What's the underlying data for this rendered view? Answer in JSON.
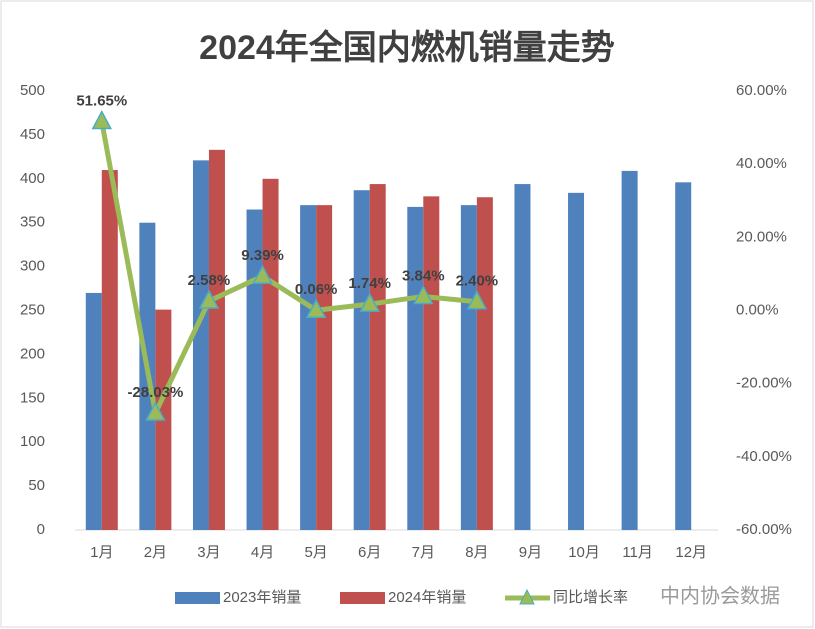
{
  "chart_data": {
    "type": "bar_line",
    "title": "2024年全国内燃机销量走势",
    "categories": [
      "1月",
      "2月",
      "3月",
      "4月",
      "5月",
      "6月",
      "7月",
      "8月",
      "9月",
      "10月",
      "11月",
      "12月"
    ],
    "series": [
      {
        "name": "2023年销量",
        "color": "#4f81bd",
        "type": "bar",
        "values": [
          270,
          350,
          421,
          365,
          370,
          387,
          368,
          370,
          394,
          384,
          409,
          396
        ]
      },
      {
        "name": "2024年销量",
        "color": "#c0504d",
        "type": "bar",
        "values": [
          410,
          251,
          433,
          400,
          370,
          394,
          380,
          379,
          null,
          null,
          null,
          null
        ]
      },
      {
        "name": "同比增长率",
        "color": "#9bbb59",
        "type": "line",
        "axis": "y2",
        "marker_color": "#4bacc6",
        "values": [
          51.65,
          -28.03,
          2.58,
          9.39,
          0.06,
          1.74,
          3.84,
          2.4,
          null,
          null,
          null,
          null
        ],
        "value_labels": [
          "51.65%",
          "-28.03%",
          "2.58%",
          "9.39%",
          "0.06%",
          "1.74%",
          "3.84%",
          "2.40%",
          null,
          null,
          null,
          null
        ]
      }
    ],
    "ylim": [
      0,
      500
    ],
    "yticks": [
      0,
      50,
      100,
      150,
      200,
      250,
      300,
      350,
      400,
      450,
      500
    ],
    "y2lim": [
      -60,
      60
    ],
    "y2ticks": [
      {
        "value": -60,
        "label": "-60.00%"
      },
      {
        "value": -40,
        "label": "-40.00%"
      },
      {
        "value": -20,
        "label": "-20.00%"
      },
      {
        "value": 0,
        "label": "0.00%"
      },
      {
        "value": 20,
        "label": "20.00%"
      },
      {
        "value": 40,
        "label": "40.00%"
      },
      {
        "value": 60,
        "label": "60.00%"
      }
    ],
    "grid": false,
    "legend": "bottom",
    "watermark": "中内协会数据"
  }
}
